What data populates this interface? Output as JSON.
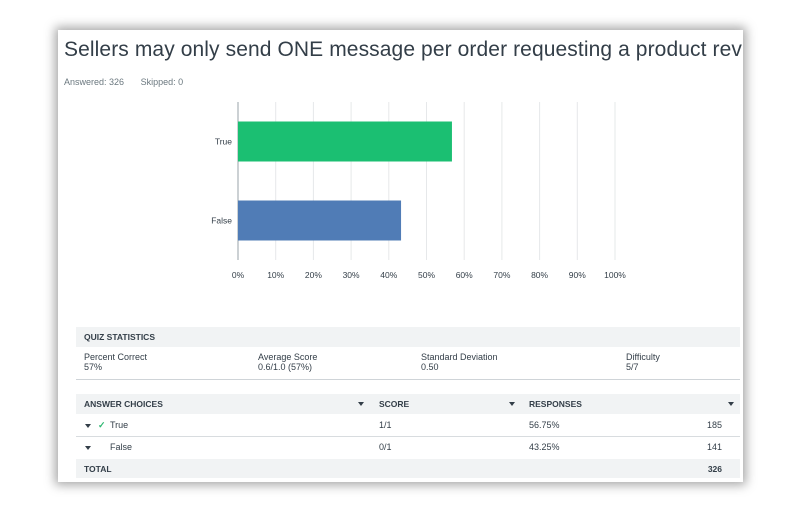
{
  "question": {
    "title": "Sellers may only send ONE message per order requesting a product review.",
    "answered_label": "Answered: 326",
    "skipped_label": "Skipped: 0"
  },
  "chart_data": {
    "type": "bar",
    "orientation": "horizontal",
    "categories": [
      "True",
      "False"
    ],
    "values": [
      56.75,
      43.25
    ],
    "colors": [
      "#1bbf72",
      "#507cb6"
    ],
    "xlim": [
      0,
      100
    ],
    "xticks": [
      "0%",
      "10%",
      "20%",
      "30%",
      "40%",
      "50%",
      "60%",
      "70%",
      "80%",
      "90%",
      "100%"
    ],
    "grid": true
  },
  "quiz_statistics": {
    "header": "QUIZ STATISTICS",
    "stats": [
      {
        "label": "Percent Correct",
        "value": "57%"
      },
      {
        "label": "Average Score",
        "value": "0.6/1.0 (57%)"
      },
      {
        "label": "Standard Deviation",
        "value": "0.50"
      },
      {
        "label": "Difficulty",
        "value": "5/7"
      }
    ]
  },
  "answer_table": {
    "headers": {
      "choices": "ANSWER CHOICES",
      "score": "SCORE",
      "responses": "RESPONSES"
    },
    "rows": [
      {
        "choice": "True",
        "correct": true,
        "score": "1/1",
        "percent": "56.75%",
        "count": "185"
      },
      {
        "choice": "False",
        "correct": false,
        "score": "0/1",
        "percent": "43.25%",
        "count": "141"
      }
    ],
    "total_label": "TOTAL",
    "total_count": "326"
  },
  "colors": {
    "true_bar": "#1bbf72",
    "false_bar": "#507cb6",
    "check": "#2eb872"
  }
}
